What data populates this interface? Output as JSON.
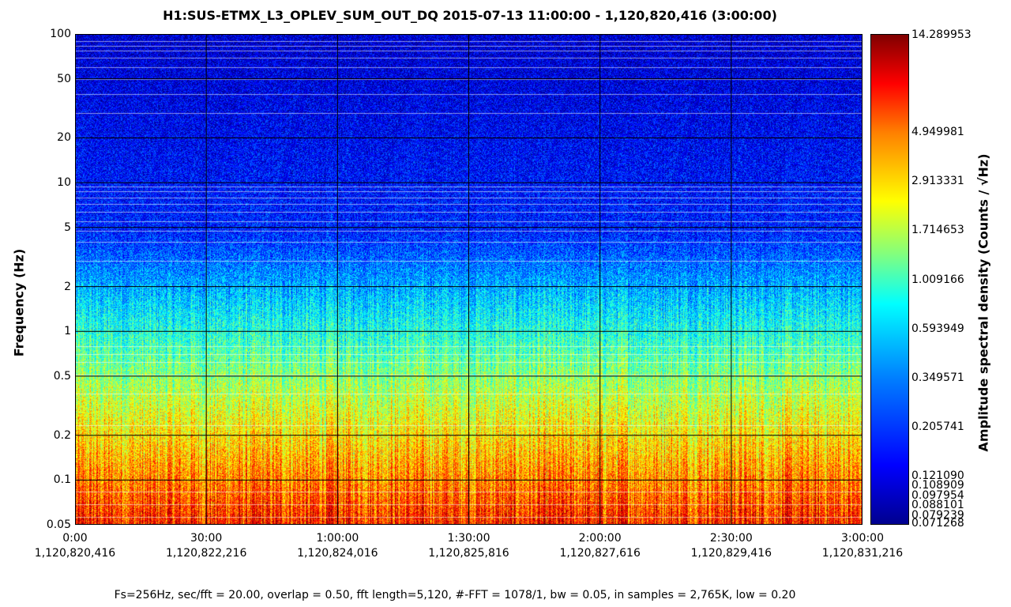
{
  "chart_data": {
    "type": "heatmap",
    "title": "H1:SUS-ETMX_L3_OPLEV_SUM_OUT_DQ 2015-07-13 11:00:00 - 1,120,820,416 (3:00:00)",
    "ylabel": "Frequency (Hz)",
    "colorbar_label": "Amplitude spectral density (Counts / √Hz)",
    "y_scale": "log",
    "ylim": [
      0.05,
      100
    ],
    "y_ticks": [
      {
        "value": 100,
        "label": "100"
      },
      {
        "value": 50,
        "label": "50"
      },
      {
        "value": 20,
        "label": "20"
      },
      {
        "value": 10,
        "label": "10"
      },
      {
        "value": 5,
        "label": "5"
      },
      {
        "value": 2,
        "label": "2"
      },
      {
        "value": 1,
        "label": "1"
      },
      {
        "value": 0.5,
        "label": "0.5"
      },
      {
        "value": 0.2,
        "label": "0.2"
      },
      {
        "value": 0.1,
        "label": "0.1"
      },
      {
        "value": 0.05,
        "label": "0.05"
      }
    ],
    "x_ticks": [
      {
        "label": "0:00",
        "gps": "1,120,820,416"
      },
      {
        "label": "30:00",
        "gps": "1,120,822,216"
      },
      {
        "label": "1:00:00",
        "gps": "1,120,824,016"
      },
      {
        "label": "1:30:00",
        "gps": "1,120,825,816"
      },
      {
        "label": "2:00:00",
        "gps": "1,120,827,616"
      },
      {
        "label": "2:30:00",
        "gps": "1,120,829,416"
      },
      {
        "label": "3:00:00",
        "gps": "1,120,831,216"
      }
    ],
    "colorbar_ticks": [
      "14.289953",
      "4.949981",
      "2.913331",
      "1.714653",
      "1.009166",
      "0.593949",
      "0.349571",
      "0.205741",
      "0.121090",
      "0.108909",
      "0.097954",
      "0.088101",
      "0.079239",
      "0.071268"
    ],
    "colorbar_range": [
      0.071268,
      14.289953
    ],
    "grid": true,
    "footnote": "Fs=256Hz, sec/fft = 20.00, overlap = 0.50, fft length=5,120, #-FFT = 1078/1, bw = 0.05, in samples = 2,765K, low = 0.20"
  }
}
